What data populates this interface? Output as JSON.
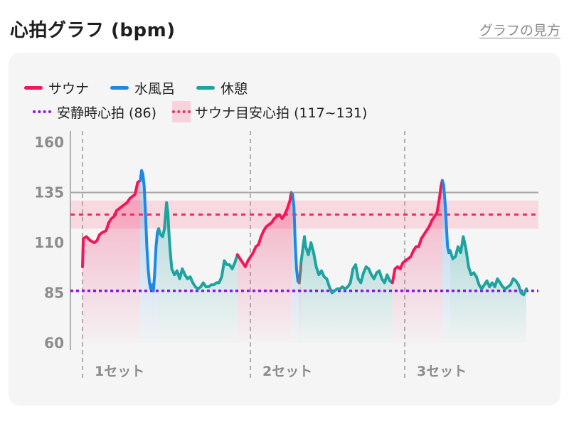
{
  "header": {
    "title": "心拍グラフ (bpm)",
    "help_link": "グラフの見方"
  },
  "legend": {
    "sauna": "サウナ",
    "mizuburo": "水風呂",
    "rest": "休憩",
    "resting_hr": "安静時心拍 (86)",
    "sauna_target": "サウナ目安心拍 (117~131)"
  },
  "colors": {
    "sauna": "#f0175a",
    "mizuburo": "#1e88e5",
    "rest": "#1fa3a0",
    "resting_hr": "#8a12e8",
    "target_line": "#ef2d64",
    "target_band": "#f9d3dc",
    "transition": "#777777"
  },
  "chart_data": {
    "type": "line",
    "ylim": [
      55,
      165
    ],
    "yticks": [
      "160",
      "135",
      "110",
      "85",
      "60"
    ],
    "ytick_values": [
      160,
      135,
      110,
      85,
      60
    ],
    "xlim": [
      0,
      100
    ],
    "set_labels": [
      "1セット",
      "2セット",
      "3セット"
    ],
    "set_boundaries": [
      0,
      41,
      74
    ],
    "reference_lines": {
      "upper_gray": 135,
      "resting_hr": 86,
      "target_mid": 124
    },
    "target_band": [
      117,
      131
    ],
    "segments": [
      {
        "phase": "sauna",
        "points": [
          [
            0,
            98
          ],
          [
            0.3,
            112
          ],
          [
            1.5,
            113
          ],
          [
            3,
            111
          ],
          [
            4.5,
            110
          ],
          [
            5.5,
            111
          ],
          [
            6.5,
            114
          ],
          [
            7.5,
            115
          ],
          [
            9,
            116
          ],
          [
            10,
            120
          ],
          [
            11,
            122
          ],
          [
            12,
            123
          ],
          [
            13,
            126
          ],
          [
            14,
            127
          ],
          [
            15,
            128
          ],
          [
            16,
            129
          ],
          [
            17,
            130
          ],
          [
            18,
            132
          ],
          [
            19,
            133
          ],
          [
            20,
            134
          ],
          [
            21,
            140
          ],
          [
            22,
            141
          ]
        ]
      },
      {
        "phase": "mizuburo",
        "points": [
          [
            22,
            141
          ],
          [
            22.5,
            146
          ],
          [
            23,
            144
          ],
          [
            23.5,
            138
          ],
          [
            24,
            124
          ],
          [
            24.5,
            108
          ],
          [
            25,
            97
          ],
          [
            25.5,
            90
          ],
          [
            26,
            87
          ],
          [
            26.5,
            89
          ],
          [
            27,
            86
          ],
          [
            27.5,
            95
          ],
          [
            28,
            108
          ],
          [
            28.5,
            115
          ],
          [
            29,
            117
          ]
        ]
      },
      {
        "phase": "rest",
        "points": [
          [
            29,
            117
          ],
          [
            29.7,
            114
          ],
          [
            30.5,
            113
          ],
          [
            31.2,
            117
          ],
          [
            32,
            130
          ],
          [
            32.5,
            125
          ],
          [
            33,
            113
          ],
          [
            33.5,
            104
          ],
          [
            34,
            97
          ],
          [
            35,
            94
          ],
          [
            36,
            96
          ],
          [
            37,
            92
          ],
          [
            38,
            97
          ],
          [
            39,
            94
          ],
          [
            40,
            92
          ],
          [
            41,
            93
          ],
          [
            42,
            90
          ],
          [
            43,
            88
          ],
          [
            44,
            87
          ],
          [
            45,
            88
          ],
          [
            46,
            90
          ],
          [
            47,
            88
          ],
          [
            48,
            88
          ],
          [
            49,
            89
          ],
          [
            50,
            89
          ],
          [
            51,
            90
          ],
          [
            52,
            90
          ],
          [
            53,
            93
          ],
          [
            54,
            101
          ],
          [
            55,
            99
          ],
          [
            56,
            99
          ],
          [
            57,
            97
          ],
          [
            58,
            100
          ],
          [
            59,
            104
          ]
        ]
      },
      {
        "phase": "sauna",
        "points": [
          [
            59,
            104
          ],
          [
            60,
            102
          ],
          [
            61,
            100
          ],
          [
            62,
            98
          ],
          [
            63,
            101
          ],
          [
            64,
            103
          ],
          [
            65,
            105
          ],
          [
            66,
            108
          ],
          [
            67,
            109
          ],
          [
            68,
            113
          ],
          [
            69,
            116
          ],
          [
            70,
            118
          ],
          [
            71,
            119
          ],
          [
            72,
            120
          ],
          [
            73,
            122
          ],
          [
            74,
            123
          ],
          [
            75,
            124
          ],
          [
            76,
            122
          ],
          [
            77,
            124
          ],
          [
            78,
            127
          ],
          [
            79,
            131
          ],
          [
            79.5,
            135
          ]
        ]
      },
      {
        "phase": "transition",
        "points": [
          [
            79.5,
            135
          ],
          [
            80,
            134
          ]
        ]
      },
      {
        "phase": "mizuburo",
        "points": [
          [
            80,
            134
          ],
          [
            80.5,
            128
          ],
          [
            81,
            110
          ],
          [
            81.5,
            97
          ],
          [
            82,
            91
          ],
          [
            82.5,
            90
          ]
        ]
      },
      {
        "phase": "transition",
        "points": [
          [
            82.5,
            90
          ],
          [
            83,
            96
          ],
          [
            83.2,
            100
          ]
        ]
      },
      {
        "phase": "rest",
        "points": [
          [
            83.2,
            100
          ],
          [
            84,
            108
          ],
          [
            84.5,
            113
          ],
          [
            85,
            108
          ],
          [
            86,
            104
          ],
          [
            87,
            110
          ],
          [
            88,
            105
          ],
          [
            89,
            98
          ],
          [
            90,
            94
          ],
          [
            91,
            96
          ],
          [
            92,
            93
          ],
          [
            93,
            92
          ],
          [
            94,
            88
          ],
          [
            95,
            85
          ],
          [
            96,
            86
          ],
          [
            97,
            87
          ],
          [
            98,
            87
          ],
          [
            99,
            88
          ],
          [
            100,
            87
          ],
          [
            101,
            88
          ],
          [
            102,
            90
          ],
          [
            103,
            97
          ],
          [
            104,
            99
          ],
          [
            105,
            92
          ],
          [
            106,
            90
          ],
          [
            107,
            95
          ],
          [
            108,
            98
          ],
          [
            109,
            97
          ],
          [
            110,
            94
          ],
          [
            111,
            92
          ],
          [
            112,
            95
          ],
          [
            113,
            96
          ],
          [
            114,
            92
          ],
          [
            115,
            90
          ],
          [
            116,
            94
          ],
          [
            117,
            91
          ],
          [
            118,
            90
          ]
        ]
      },
      {
        "phase": "sauna",
        "points": [
          [
            118,
            90
          ],
          [
            119,
            97
          ],
          [
            120,
            98
          ],
          [
            121,
            97
          ],
          [
            122,
            100
          ],
          [
            123,
            101
          ],
          [
            124,
            102
          ],
          [
            125,
            103
          ],
          [
            126,
            106
          ],
          [
            127,
            108
          ],
          [
            128,
            108
          ],
          [
            129,
            112
          ],
          [
            130,
            114
          ],
          [
            131,
            116
          ],
          [
            132,
            118
          ],
          [
            133,
            121
          ],
          [
            134,
            123
          ],
          [
            135,
            125
          ],
          [
            136,
            133
          ],
          [
            136.5,
            138
          ],
          [
            137,
            141
          ]
        ]
      },
      {
        "phase": "mizuburo",
        "points": [
          [
            137,
            141
          ],
          [
            137.5,
            139
          ],
          [
            138,
            131
          ],
          [
            138.5,
            120
          ],
          [
            139,
            108
          ],
          [
            139.5,
            105
          ],
          [
            140,
            106
          ]
        ]
      },
      {
        "phase": "rest",
        "points": [
          [
            140,
            106
          ],
          [
            141,
            102
          ],
          [
            142,
            103
          ],
          [
            143,
            108
          ],
          [
            144,
            105
          ],
          [
            145,
            113
          ],
          [
            146,
            107
          ],
          [
            147,
            98
          ],
          [
            148,
            94
          ],
          [
            149,
            95
          ],
          [
            150,
            93
          ],
          [
            151,
            89
          ],
          [
            152,
            87
          ],
          [
            153,
            89
          ],
          [
            154,
            91
          ],
          [
            155,
            88
          ],
          [
            156,
            90
          ],
          [
            157,
            88
          ],
          [
            158,
            92
          ],
          [
            159,
            90
          ],
          [
            160,
            88
          ],
          [
            161,
            87
          ],
          [
            162,
            88
          ],
          [
            163,
            89
          ],
          [
            164,
            92
          ],
          [
            165,
            91
          ],
          [
            166,
            89
          ],
          [
            167,
            85
          ],
          [
            168,
            84
          ],
          [
            169,
            87
          ]
        ]
      }
    ]
  }
}
